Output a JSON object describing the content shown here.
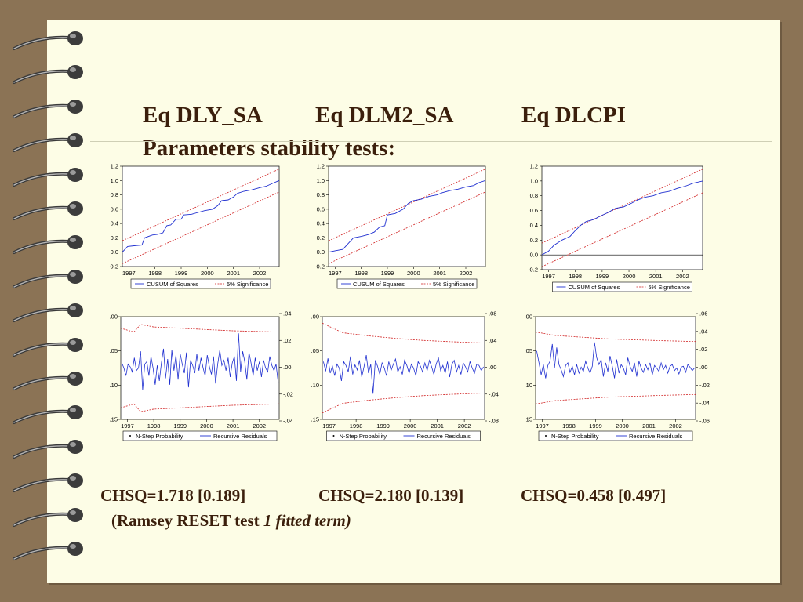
{
  "slide": {
    "title_line1": "Parameters stability tests:",
    "eq_labels": [
      "Eq DLY_SA",
      "Eq DLM2_SA",
      "Eq DLCPI"
    ],
    "stats": [
      "CHSQ=1.718 [0.189]",
      "CHSQ=2.180 [0.139]",
      "CHSQ=0.458 [0.497]"
    ],
    "ramsey_prefix": "(Ramsey RESET test ",
    "ramsey_italic": "1 fitted term)"
  },
  "colors": {
    "background": "#8b7355",
    "paper": "#fdfde6",
    "title": "#3b1f0c",
    "series_blue": "#1f2fd0",
    "bound_red": "#d02020"
  },
  "chart_data": [
    {
      "type": "line",
      "name_eq": "DLY_SA",
      "x_ticks": [
        "1997",
        "1998",
        "1999",
        "2000",
        "2001",
        "2002"
      ],
      "y_ticks": [
        "1.2",
        "1.0",
        "0.8",
        "0.6",
        "0.4",
        "0.2",
        "0.0",
        "-0.2"
      ],
      "ylim": [
        -0.2,
        1.2
      ],
      "xlim": [
        1996.75,
        2002.75
      ],
      "legend": [
        "CUSUM of Squares",
        "5% Significance"
      ],
      "cusum": [
        [
          1996.75,
          0.0
        ],
        [
          1996.95,
          0.08
        ],
        [
          1997.2,
          0.09
        ],
        [
          1997.5,
          0.1
        ],
        [
          1997.6,
          0.2
        ],
        [
          1997.9,
          0.24
        ],
        [
          1998.1,
          0.25
        ],
        [
          1998.3,
          0.27
        ],
        [
          1998.45,
          0.37
        ],
        [
          1998.6,
          0.38
        ],
        [
          1998.8,
          0.46
        ],
        [
          1999.0,
          0.46
        ],
        [
          1999.1,
          0.52
        ],
        [
          1999.4,
          0.53
        ],
        [
          1999.7,
          0.56
        ],
        [
          1999.9,
          0.58
        ],
        [
          2000.2,
          0.6
        ],
        [
          2000.4,
          0.65
        ],
        [
          2000.55,
          0.72
        ],
        [
          2000.8,
          0.73
        ],
        [
          2001.0,
          0.77
        ],
        [
          2001.15,
          0.82
        ],
        [
          2001.4,
          0.85
        ],
        [
          2001.7,
          0.87
        ],
        [
          2002.0,
          0.9
        ],
        [
          2002.25,
          0.92
        ],
        [
          2002.5,
          0.96
        ],
        [
          2002.75,
          1.0
        ]
      ],
      "upper": [
        [
          1996.75,
          0.16
        ],
        [
          2002.75,
          1.16
        ]
      ],
      "lower": [
        [
          1996.75,
          -0.16
        ],
        [
          2002.75,
          0.84
        ]
      ]
    },
    {
      "type": "line",
      "name_eq": "DLM2_SA",
      "x_ticks": [
        "1997",
        "1998",
        "1999",
        "2000",
        "2001",
        "2002"
      ],
      "y_ticks": [
        "1.2",
        "1.0",
        "0.8",
        "0.6",
        "0.4",
        "0.2",
        "0.0",
        "-0.2"
      ],
      "ylim": [
        -0.2,
        1.2
      ],
      "xlim": [
        1996.75,
        2002.75
      ],
      "legend": [
        "CUSUM of Squares",
        "5% Significance"
      ],
      "cusum": [
        [
          1996.75,
          0.0
        ],
        [
          1997.0,
          0.02
        ],
        [
          1997.3,
          0.04
        ],
        [
          1997.5,
          0.12
        ],
        [
          1997.7,
          0.2
        ],
        [
          1998.0,
          0.22
        ],
        [
          1998.3,
          0.25
        ],
        [
          1998.5,
          0.28
        ],
        [
          1998.7,
          0.35
        ],
        [
          1998.9,
          0.37
        ],
        [
          1999.0,
          0.52
        ],
        [
          1999.3,
          0.54
        ],
        [
          1999.6,
          0.6
        ],
        [
          1999.8,
          0.68
        ],
        [
          2000.0,
          0.72
        ],
        [
          2000.3,
          0.74
        ],
        [
          2000.6,
          0.78
        ],
        [
          2000.9,
          0.8
        ],
        [
          2001.1,
          0.83
        ],
        [
          2001.4,
          0.86
        ],
        [
          2001.7,
          0.88
        ],
        [
          2002.0,
          0.91
        ],
        [
          2002.3,
          0.93
        ],
        [
          2002.5,
          0.97
        ],
        [
          2002.75,
          1.0
        ]
      ],
      "upper": [
        [
          1996.75,
          0.16
        ],
        [
          2002.75,
          1.16
        ]
      ],
      "lower": [
        [
          1996.75,
          -0.16
        ],
        [
          2002.75,
          0.84
        ]
      ]
    },
    {
      "type": "line",
      "name_eq": "DLCPI",
      "x_ticks": [
        "1997",
        "1998",
        "1999",
        "2000",
        "2001",
        "2002"
      ],
      "y_ticks": [
        "1.2",
        "1.0",
        "0.8",
        "0.6",
        "0.4",
        "0.2",
        "0.0",
        "-0.2"
      ],
      "ylim": [
        -0.2,
        1.2
      ],
      "xlim": [
        1996.75,
        2002.75
      ],
      "legend": [
        "CUSUM of Squares",
        "5% Significance"
      ],
      "cusum": [
        [
          1996.75,
          0.0
        ],
        [
          1997.0,
          0.05
        ],
        [
          1997.2,
          0.13
        ],
        [
          1997.5,
          0.2
        ],
        [
          1997.8,
          0.25
        ],
        [
          1998.0,
          0.33
        ],
        [
          1998.2,
          0.4
        ],
        [
          1998.4,
          0.45
        ],
        [
          1998.7,
          0.48
        ],
        [
          1998.9,
          0.52
        ],
        [
          1999.2,
          0.57
        ],
        [
          1999.5,
          0.63
        ],
        [
          1999.8,
          0.65
        ],
        [
          2000.1,
          0.7
        ],
        [
          2000.3,
          0.74
        ],
        [
          2000.6,
          0.78
        ],
        [
          2000.9,
          0.8
        ],
        [
          2001.2,
          0.84
        ],
        [
          2001.5,
          0.86
        ],
        [
          2001.8,
          0.9
        ],
        [
          2002.1,
          0.93
        ],
        [
          2002.4,
          0.97
        ],
        [
          2002.75,
          1.0
        ]
      ],
      "upper": [
        [
          1996.75,
          0.16
        ],
        [
          2002.75,
          1.16
        ]
      ],
      "lower": [
        [
          1996.75,
          -0.16
        ],
        [
          2002.75,
          0.84
        ]
      ]
    },
    {
      "type": "line",
      "name_eq": "DLY_SA residuals",
      "x_ticks": [
        "1997",
        "1998",
        "1999",
        "2000",
        "2001",
        "2002"
      ],
      "y_left_ticks": [
        ".00",
        ".05",
        ".10",
        ".15"
      ],
      "y_right_ticks": [
        ".04",
        ".02",
        ".00",
        "-.02",
        "-.04"
      ],
      "ylim_right": [
        -0.04,
        0.04
      ],
      "xlim": [
        1996.75,
        2002.75
      ],
      "legend": [
        "N-Step Probability",
        "Recursive Residuals"
      ],
      "residuals": [
        0.004,
        0.0,
        -0.006,
        0.003,
        0.001,
        -0.003,
        0.008,
        -0.002,
        0.0,
        0.013,
        -0.017,
        0.003,
        0.005,
        -0.006,
        0.009,
        0.0,
        -0.013,
        0.002,
        -0.01,
        0.004,
        0.015,
        -0.008,
        0.007,
        -0.013,
        0.014,
        -0.002,
        0.01,
        -0.009,
        0.011,
        0.003,
        -0.004,
        0.012,
        -0.015,
        0.006,
        0.002,
        -0.004,
        0.011,
        -0.002,
        0.008,
        0.0,
        -0.006,
        0.01,
        0.001,
        -0.005,
        0.009,
        -0.012,
        0.003,
        0.014,
        0.002,
        0.006,
        -0.002,
        0.008,
        -0.007,
        0.004,
        0.009,
        -0.01,
        0.027,
        -0.003,
        0.013,
        0.005,
        -0.009,
        0.012,
        0.004,
        -0.006,
        0.008,
        -0.002,
        0.005,
        -0.007,
        0.006,
        0.0,
        -0.003,
        0.009,
        0.002,
        -0.002,
        0.003,
        -0.011
      ],
      "upper_band": [
        [
          1996.75,
          0.031
        ],
        [
          1997.25,
          0.028
        ],
        [
          1997.5,
          0.034
        ],
        [
          1998.0,
          0.032
        ],
        [
          1999.0,
          0.031
        ],
        [
          2000.0,
          0.03
        ],
        [
          2001.0,
          0.029
        ],
        [
          2002.75,
          0.028
        ]
      ],
      "lower_band": [
        [
          1996.75,
          -0.031
        ],
        [
          1997.25,
          -0.028
        ],
        [
          1997.5,
          -0.034
        ],
        [
          1998.0,
          -0.032
        ],
        [
          1999.0,
          -0.031
        ],
        [
          2000.0,
          -0.03
        ],
        [
          2001.0,
          -0.029
        ],
        [
          2002.75,
          -0.028
        ]
      ]
    },
    {
      "type": "line",
      "name_eq": "DLM2_SA residuals",
      "x_ticks": [
        "1997",
        "1998",
        "1999",
        "2000",
        "2001",
        "2002"
      ],
      "y_left_ticks": [
        ".00",
        ".05",
        ".10",
        ".15"
      ],
      "y_right_ticks": [
        ".08",
        ".04",
        ".00",
        "-.04",
        "-.08"
      ],
      "ylim_right": [
        -0.08,
        0.08
      ],
      "xlim": [
        1996.75,
        2002.75
      ],
      "legend": [
        "N-Step Probability",
        "Recursive Residuals"
      ],
      "residuals": [
        0.01,
        -0.005,
        0.015,
        -0.008,
        0.003,
        -0.012,
        0.006,
        0.0,
        -0.02,
        0.01,
        0.004,
        -0.006,
        0.018,
        -0.01,
        0.005,
        -0.003,
        0.012,
        -0.014,
        0.002,
        0.02,
        -0.008,
        0.006,
        -0.04,
        0.012,
        0.003,
        -0.01,
        0.008,
        0.0,
        -0.012,
        0.01,
        -0.004,
        0.006,
        0.014,
        -0.006,
        0.002,
        -0.01,
        0.012,
        0.004,
        -0.008,
        0.006,
        0.0,
        -0.012,
        0.01,
        0.003,
        -0.006,
        0.008,
        -0.004,
        0.012,
        0.002,
        -0.01,
        0.006,
        0.016,
        -0.004,
        0.004,
        -0.008,
        0.01,
        -0.014,
        0.006,
        0.012,
        -0.006,
        0.004,
        -0.01,
        0.008,
        0.002,
        -0.006,
        0.01,
        0.0,
        -0.008,
        0.006,
        0.004,
        -0.004,
        0.002
      ],
      "upper_band": [
        [
          1996.75,
          0.07
        ],
        [
          1997.5,
          0.055
        ],
        [
          1998.5,
          0.05
        ],
        [
          1999.5,
          0.046
        ],
        [
          2000.5,
          0.043
        ],
        [
          2001.5,
          0.041
        ],
        [
          2002.75,
          0.039
        ]
      ],
      "lower_band": [
        [
          1996.75,
          -0.07
        ],
        [
          1997.5,
          -0.055
        ],
        [
          1998.5,
          -0.05
        ],
        [
          1999.5,
          -0.046
        ],
        [
          2000.5,
          -0.043
        ],
        [
          2001.5,
          -0.041
        ],
        [
          2002.75,
          -0.039
        ]
      ]
    },
    {
      "type": "line",
      "name_eq": "DLCPI residuals",
      "x_ticks": [
        "1997",
        "1998",
        "1999",
        "2000",
        "2001",
        "2002"
      ],
      "y_left_ticks": [
        ".00",
        ".05",
        ".10",
        ".15"
      ],
      "y_right_ticks": [
        ".06",
        ".04",
        ".02",
        ".00",
        "-.02",
        "-.04",
        "-.06"
      ],
      "ylim_right": [
        -0.06,
        0.06
      ],
      "xlim": [
        1996.75,
        2002.75
      ],
      "legend": [
        "N-Step Probability",
        "Recursive Residuals"
      ],
      "residuals": [
        0.02,
        0.006,
        -0.008,
        0.004,
        -0.012,
        0.003,
        0.008,
        0.028,
        0.0,
        0.024,
        0.004,
        -0.002,
        -0.01,
        0.003,
        0.006,
        -0.005,
        0.002,
        -0.008,
        0.004,
        -0.006,
        0.001,
        -0.004,
        0.008,
        0.0,
        -0.006,
        0.002,
        0.03,
        0.012,
        0.004,
        0.01,
        -0.01,
        0.006,
        -0.004,
        0.014,
        0.002,
        -0.012,
        0.01,
        -0.006,
        0.004,
        0.0,
        -0.008,
        0.012,
        0.002,
        -0.004,
        0.006,
        -0.01,
        0.008,
        0.0,
        -0.005,
        0.004,
        -0.002,
        0.006,
        -0.008,
        0.003,
        0.0,
        -0.004,
        0.006,
        -0.002,
        0.003,
        -0.006,
        0.002,
        0.004,
        -0.003,
        0.0,
        -0.007,
        0.001,
        0.002,
        -0.005,
        0.004,
        0.001,
        -0.003,
        0.0
      ],
      "upper_band": [
        [
          1996.75,
          0.042
        ],
        [
          1997.5,
          0.038
        ],
        [
          1998.5,
          0.036
        ],
        [
          1999.5,
          0.034
        ],
        [
          2000.5,
          0.033
        ],
        [
          2001.5,
          0.032
        ],
        [
          2002.75,
          0.031
        ]
      ],
      "lower_band": [
        [
          1996.75,
          -0.042
        ],
        [
          1997.5,
          -0.038
        ],
        [
          1998.5,
          -0.036
        ],
        [
          1999.5,
          -0.034
        ],
        [
          2000.5,
          -0.033
        ],
        [
          2001.5,
          -0.032
        ],
        [
          2002.75,
          -0.031
        ]
      ]
    }
  ]
}
